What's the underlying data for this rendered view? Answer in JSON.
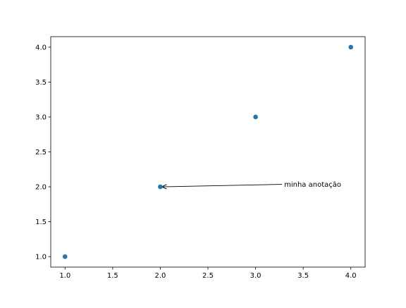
{
  "chart_data": {
    "type": "scatter",
    "title": "",
    "xlabel": "",
    "ylabel": "",
    "xlim": [
      0.85,
      4.15
    ],
    "ylim": [
      0.85,
      4.15
    ],
    "grid": false,
    "series": [
      {
        "x": [
          1,
          2,
          3,
          4
        ],
        "y": [
          1,
          2,
          3,
          4
        ],
        "color": "#1f77b4"
      }
    ],
    "xticks": [
      "1.0",
      "1.5",
      "2.0",
      "2.5",
      "3.0",
      "3.5",
      "4.0"
    ],
    "yticks": [
      "1.0",
      "1.5",
      "2.0",
      "2.5",
      "3.0",
      "3.5",
      "4.0"
    ],
    "annotations": [
      {
        "text": "minha anotação",
        "x": 2,
        "y": 2,
        "text_x": 3.3,
        "text_y": 2.0
      }
    ]
  }
}
